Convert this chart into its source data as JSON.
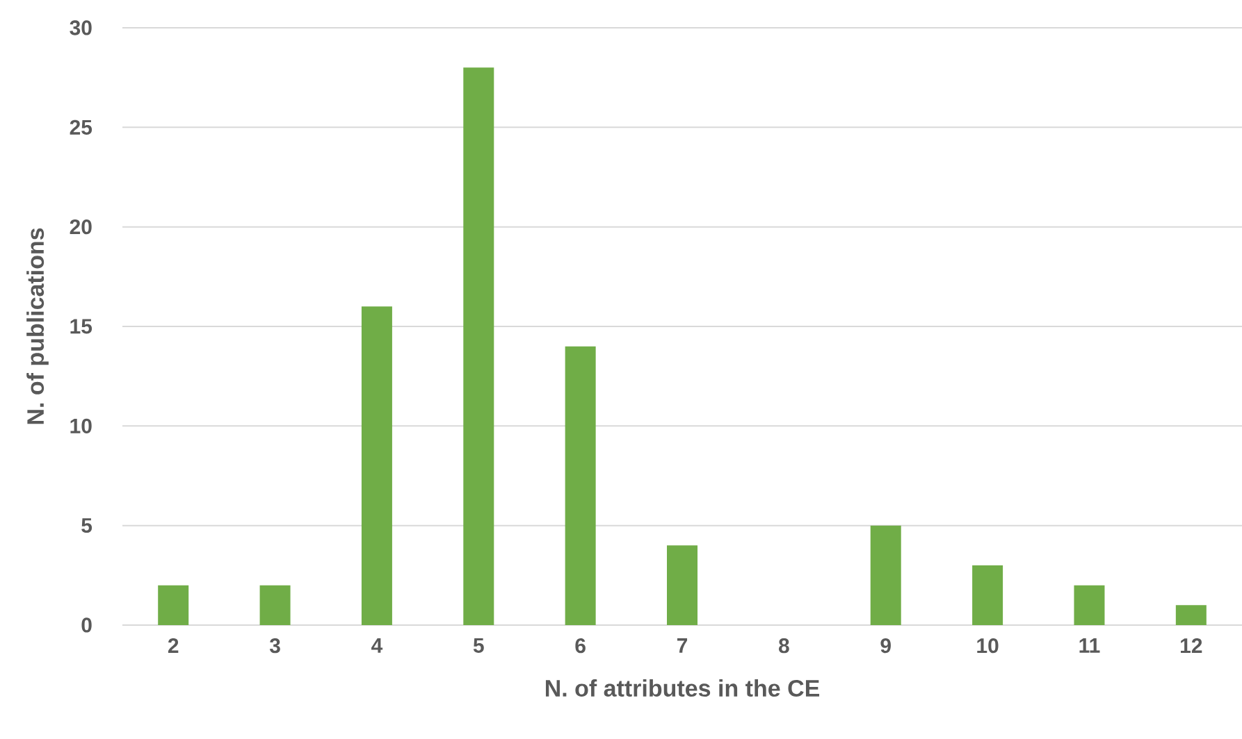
{
  "chart_data": {
    "type": "bar",
    "xlabel": "N. of attributes in the CE",
    "ylabel": "N. of publications",
    "categories": [
      "2",
      "3",
      "4",
      "5",
      "6",
      "7",
      "8",
      "9",
      "10",
      "11",
      "12"
    ],
    "values": [
      2,
      2,
      16,
      28,
      14,
      4,
      0,
      5,
      3,
      2,
      1
    ],
    "color": "#70ad47",
    "ylim": [
      0,
      30
    ],
    "yticks": [
      0,
      5,
      10,
      15,
      20,
      25,
      30
    ],
    "grid": "y"
  }
}
